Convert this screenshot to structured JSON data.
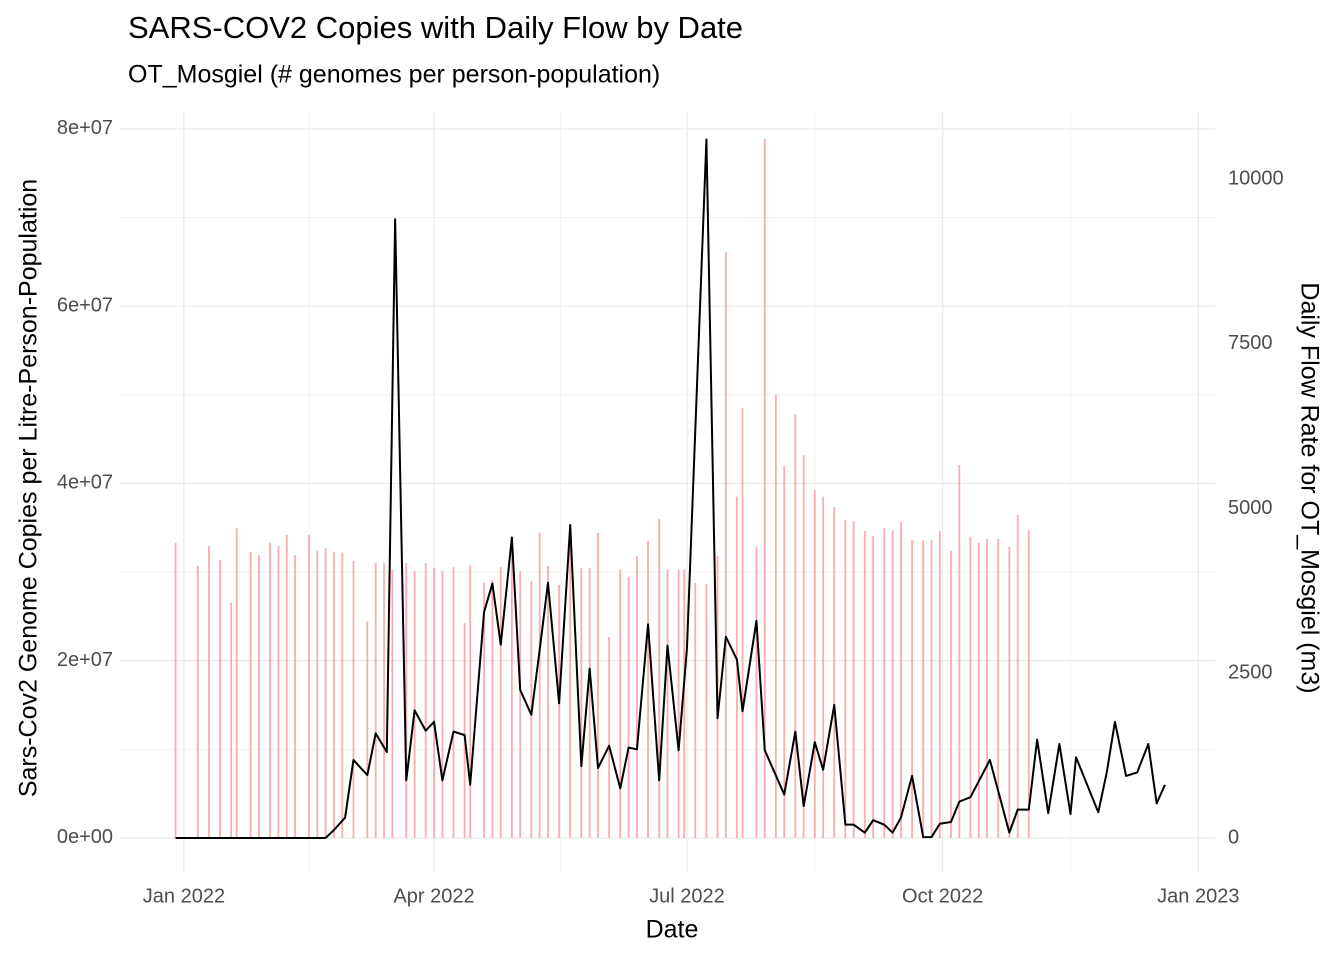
{
  "chart_data": {
    "type": "combo",
    "title": "SARS-COV2 Copies with Daily Flow by Date",
    "subtitle": "OT_Mosgiel (# genomes per person-population)",
    "x_label": "Date",
    "y_label": "Sars-Cov2 Genome Copies per Litre-Person-Population",
    "y2_label": "Daily Flow Rate for OT_Mosgiel (m3)",
    "grid": true,
    "xlim": [
      "2021-12-09",
      "2023-01-07"
    ],
    "xticks": [
      {
        "value": "2022-01-01",
        "label": "Jan 2022"
      },
      {
        "value": "2022-04-01",
        "label": "Apr 2022"
      },
      {
        "value": "2022-07-01",
        "label": "Jul 2022"
      },
      {
        "value": "2022-10-01",
        "label": "Oct 2022"
      },
      {
        "value": "2023-01-01",
        "label": "Jan 2023"
      }
    ],
    "ylim": [
      -3840000,
      81900000
    ],
    "yticks": [
      {
        "value": 0,
        "label": "0e+00"
      },
      {
        "value": 20000000,
        "label": "2e+07"
      },
      {
        "value": 40000000,
        "label": "4e+07"
      },
      {
        "value": 60000000,
        "label": "6e+07"
      },
      {
        "value": 80000000,
        "label": "8e+07"
      }
    ],
    "y2lim": [
      -516,
      11017
    ],
    "y2ticks": [
      0,
      2500,
      5000,
      7500,
      10000
    ],
    "series": [
      {
        "type": "bar",
        "axis": "y2",
        "color": "#f4a0a0",
        "x": [
          "2021-12-29",
          "2022-01-06",
          "2022-01-10",
          "2022-01-14",
          "2022-01-18",
          "2022-01-20",
          "2022-01-25",
          "2022-01-28",
          "2022-02-01",
          "2022-02-04",
          "2022-02-07",
          "2022-02-10",
          "2022-02-15",
          "2022-02-18",
          "2022-02-21",
          "2022-02-24",
          "2022-02-27",
          "2022-03-03",
          "2022-03-08",
          "2022-03-11",
          "2022-03-14",
          "2022-03-17",
          "2022-03-22",
          "2022-03-25",
          "2022-03-29",
          "2022-04-01",
          "2022-04-04",
          "2022-04-08",
          "2022-04-12",
          "2022-04-14",
          "2022-04-19",
          "2022-04-22",
          "2022-04-25",
          "2022-04-29",
          "2022-05-02",
          "2022-05-06",
          "2022-05-09",
          "2022-05-12",
          "2022-05-16",
          "2022-05-20",
          "2022-05-24",
          "2022-05-27",
          "2022-05-30",
          "2022-06-03",
          "2022-06-07",
          "2022-06-10",
          "2022-06-13",
          "2022-06-17",
          "2022-06-21",
          "2022-06-24",
          "2022-06-28",
          "2022-06-30",
          "2022-07-04",
          "2022-07-08",
          "2022-07-12",
          "2022-07-15",
          "2022-07-19",
          "2022-07-21",
          "2022-07-26",
          "2022-07-29",
          "2022-08-02",
          "2022-08-05",
          "2022-08-09",
          "2022-08-12",
          "2022-08-16",
          "2022-08-19",
          "2022-08-23",
          "2022-08-27",
          "2022-08-30",
          "2022-09-03",
          "2022-09-06",
          "2022-09-10",
          "2022-09-13",
          "2022-09-16",
          "2022-09-20",
          "2022-09-24",
          "2022-09-27",
          "2022-09-30",
          "2022-10-04",
          "2022-10-07",
          "2022-10-11",
          "2022-10-14",
          "2022-10-17",
          "2022-10-21",
          "2022-10-25",
          "2022-10-28",
          "2022-11-01"
        ],
        "values": [
          4480,
          4130,
          4430,
          4220,
          3570,
          4700,
          4340,
          4290,
          4480,
          4430,
          4600,
          4290,
          4600,
          4360,
          4400,
          4340,
          4330,
          4200,
          3290,
          4170,
          4170,
          4070,
          4170,
          4050,
          4170,
          4100,
          4050,
          4110,
          3260,
          4140,
          3870,
          3920,
          4110,
          4520,
          4050,
          3900,
          4630,
          4130,
          3840,
          4750,
          4100,
          4100,
          4630,
          3050,
          4070,
          3960,
          4280,
          4510,
          4840,
          4070,
          4070,
          4070,
          3870,
          3850,
          4280,
          8890,
          5180,
          6530,
          4420,
          10610,
          6720,
          5650,
          6430,
          5810,
          5280,
          5180,
          5020,
          4830,
          4810,
          4660,
          4580,
          4700,
          4670,
          4800,
          4520,
          4520,
          4520,
          4660,
          4360,
          5660,
          4570,
          4480,
          4540,
          4540,
          4420,
          4900,
          4670
        ]
      },
      {
        "type": "line",
        "color": "#000000",
        "x": [
          "2021-12-29",
          "2022-01-06",
          "2022-01-14",
          "2022-01-25",
          "2022-02-04",
          "2022-02-15",
          "2022-02-21",
          "2022-02-24",
          "2022-02-28",
          "2022-03-03",
          "2022-03-08",
          "2022-03-11",
          "2022-03-15",
          "2022-03-18",
          "2022-03-22",
          "2022-03-25",
          "2022-03-29",
          "2022-04-01",
          "2022-04-04",
          "2022-04-08",
          "2022-04-12",
          "2022-04-14",
          "2022-04-19",
          "2022-04-22",
          "2022-04-25",
          "2022-04-29",
          "2022-05-02",
          "2022-05-06",
          "2022-05-09",
          "2022-05-12",
          "2022-05-16",
          "2022-05-20",
          "2022-05-24",
          "2022-05-27",
          "2022-05-30",
          "2022-06-03",
          "2022-06-07",
          "2022-06-10",
          "2022-06-13",
          "2022-06-17",
          "2022-06-21",
          "2022-06-24",
          "2022-06-28",
          "2022-07-01",
          "2022-07-08",
          "2022-07-12",
          "2022-07-15",
          "2022-07-19",
          "2022-07-21",
          "2022-07-26",
          "2022-07-29",
          "2022-08-05",
          "2022-08-09",
          "2022-08-12",
          "2022-08-16",
          "2022-08-19",
          "2022-08-23",
          "2022-08-27",
          "2022-08-30",
          "2022-09-03",
          "2022-09-06",
          "2022-09-10",
          "2022-09-13",
          "2022-09-16",
          "2022-09-20",
          "2022-09-24",
          "2022-09-27",
          "2022-09-30",
          "2022-10-04",
          "2022-10-07",
          "2022-10-11",
          "2022-10-18",
          "2022-10-25",
          "2022-10-28",
          "2022-11-01",
          "2022-11-04",
          "2022-11-08",
          "2022-11-12",
          "2022-11-16",
          "2022-11-18",
          "2022-11-26",
          "2022-11-29",
          "2022-12-02",
          "2022-12-06",
          "2022-12-10",
          "2022-12-14",
          "2022-12-17",
          "2022-12-20"
        ],
        "values": [
          0,
          0,
          0,
          0,
          0,
          0,
          0,
          900000,
          2300000,
          8800000,
          7100000,
          11800000,
          9700000,
          69800000,
          6500000,
          14400000,
          12100000,
          13100000,
          6500000,
          12000000,
          11600000,
          6000000,
          25500000,
          28700000,
          21800000,
          33900000,
          16700000,
          13900000,
          21200000,
          28800000,
          15200000,
          35300000,
          8100000,
          19100000,
          7900000,
          10400000,
          5600000,
          10200000,
          10000000,
          24100000,
          6500000,
          21700000,
          9900000,
          21400000,
          78800000,
          13500000,
          22700000,
          20100000,
          14300000,
          24500000,
          9900000,
          4900000,
          12000000,
          3600000,
          10800000,
          7700000,
          15000000,
          1500000,
          1500000,
          600000,
          2000000,
          1500000,
          600000,
          2300000,
          7000000,
          100000,
          100000,
          1600000,
          1800000,
          4100000,
          4600000,
          8800000,
          600000,
          3200000,
          3200000,
          11100000,
          2800000,
          10600000,
          2700000,
          9100000,
          2900000,
          7300000,
          13100000,
          7000000,
          7400000,
          10600000,
          3900000,
          6000000
        ]
      }
    ]
  }
}
